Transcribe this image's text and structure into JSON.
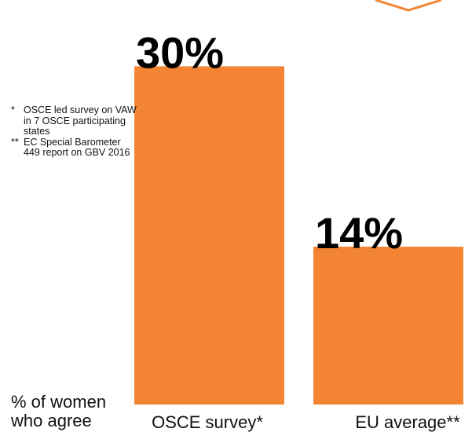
{
  "chart_data": {
    "type": "bar",
    "categories": [
      "OSCE survey*",
      "EU average**"
    ],
    "values": [
      30,
      14
    ],
    "value_labels": [
      "30%",
      "14%"
    ],
    "ylabel": "% of women who agree",
    "ylim": [
      0,
      34
    ],
    "grid": false,
    "bar_color": "#F28434",
    "decoration_color": "#F28434"
  },
  "footnotes": [
    {
      "marker": "*",
      "text": "OSCE led survey on VAW in 7 OSCE participating states"
    },
    {
      "marker": "**",
      "text": "EC Special Barometer 449 report on GBV 2016"
    }
  ]
}
